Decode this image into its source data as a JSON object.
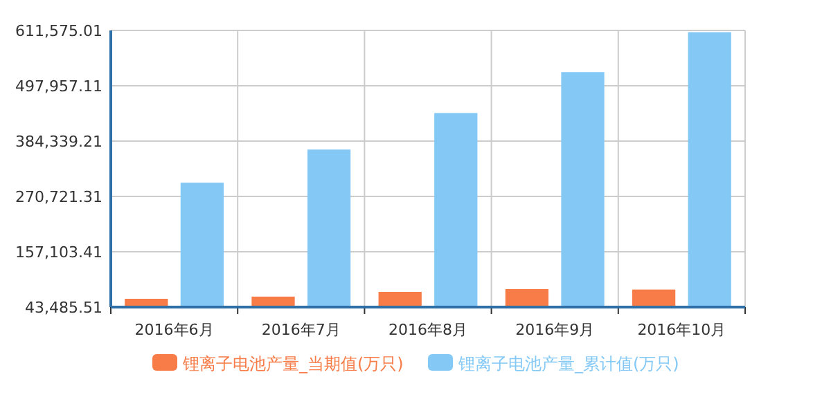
{
  "chart_data": {
    "type": "bar",
    "categories": [
      "2016年6月",
      "2016年7月",
      "2016年8月",
      "2016年9月",
      "2016年10月"
    ],
    "series": [
      {
        "name": "锂离子电池产量_当期值(万只)",
        "color": "#f77c48",
        "values": [
          60500,
          65000,
          74700,
          80400,
          79500
        ]
      },
      {
        "name": "锂离子电池产量_累计值(万只)",
        "color": "#84c9f6",
        "values": [
          299000,
          367000,
          442000,
          526000,
          608000
        ]
      }
    ],
    "ylim": [
      43485.51,
      611575.01
    ],
    "yticks": [
      {
        "value": 43485.51,
        "label": "43,485.51"
      },
      {
        "value": 157103.41,
        "label": "157,103.41"
      },
      {
        "value": 270721.31,
        "label": "270,721.31"
      },
      {
        "value": 384339.21,
        "label": "384,339.21"
      },
      {
        "value": 497957.11,
        "label": "497,957.11"
      },
      {
        "value": 611575.01,
        "label": "611,575.01"
      }
    ],
    "grid": true,
    "legend": "bottom"
  }
}
